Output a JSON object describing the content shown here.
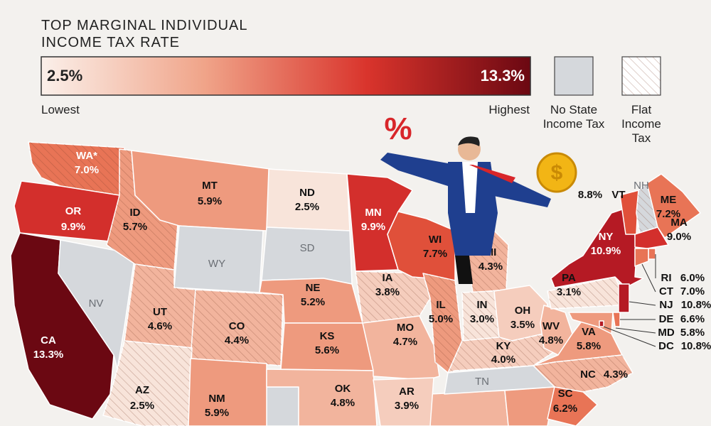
{
  "header": {
    "title_lines": [
      "TOP MARGINAL INDIVIDUAL",
      "INCOME TAX RATE"
    ]
  },
  "legend": {
    "min_label": "2.5%",
    "max_label": "13.3%",
    "low_text": "Lowest",
    "high_text": "Highest",
    "gradient": [
      "#fbf0ea",
      "#f0a489",
      "#d9342c",
      "#6b0812"
    ],
    "no_tax": {
      "lines": [
        "No State",
        "Income Tax"
      ],
      "color": "#d5d8dc"
    },
    "flat": {
      "lines": [
        "Flat",
        "Income",
        "Tax"
      ]
    }
  },
  "illustration": {
    "percent_sign": "%",
    "coin_symbol": "$"
  },
  "states": [
    {
      "abbr": "WA*",
      "rate": "7.0%",
      "color": "#e87456",
      "flat": true
    },
    {
      "abbr": "OR",
      "rate": "9.9%",
      "color": "#d32f2c"
    },
    {
      "abbr": "CA",
      "rate": "13.3%",
      "color": "#6b0812"
    },
    {
      "abbr": "NV",
      "color": "#d5d8dc"
    },
    {
      "abbr": "ID",
      "rate": "5.7%",
      "color": "#ee9a7e",
      "flat": true
    },
    {
      "abbr": "MT",
      "rate": "5.9%",
      "color": "#ee9a7e"
    },
    {
      "abbr": "WY",
      "color": "#d5d8dc"
    },
    {
      "abbr": "UT",
      "rate": "4.6%",
      "color": "#f2b49d",
      "flat": true
    },
    {
      "abbr": "CO",
      "rate": "4.4%",
      "color": "#f2b49d",
      "flat": true
    },
    {
      "abbr": "AZ",
      "rate": "2.5%",
      "color": "#f8e4da",
      "flat": true
    },
    {
      "abbr": "NM",
      "rate": "5.9%",
      "color": "#ee9a7e"
    },
    {
      "abbr": "ND",
      "rate": "2.5%",
      "color": "#f8e4da"
    },
    {
      "abbr": "SD",
      "color": "#d5d8dc"
    },
    {
      "abbr": "NE",
      "rate": "5.2%",
      "color": "#ee9a7e"
    },
    {
      "abbr": "KS",
      "rate": "5.6%",
      "color": "#ee9a7e"
    },
    {
      "abbr": "OK",
      "rate": "4.8%",
      "color": "#f2b49d"
    },
    {
      "abbr": "MN",
      "rate": "9.9%",
      "color": "#d32f2c"
    },
    {
      "abbr": "IA",
      "rate": "3.8%",
      "color": "#f5cdbd",
      "flat": true
    },
    {
      "abbr": "MO",
      "rate": "4.7%",
      "color": "#f2b49d"
    },
    {
      "abbr": "AR",
      "rate": "3.9%",
      "color": "#f5cdbd"
    },
    {
      "abbr": "WI",
      "rate": "7.7%",
      "color": "#e0503a"
    },
    {
      "abbr": "IL",
      "rate": "5.0%",
      "color": "#ee9a7e",
      "flat": true
    },
    {
      "abbr": "MI",
      "rate": "4.3%",
      "color": "#f2b49d",
      "flat": true
    },
    {
      "abbr": "IN",
      "rate": "3.0%",
      "color": "#f8e4da",
      "flat": true
    },
    {
      "abbr": "OH",
      "rate": "3.5%",
      "color": "#f5cdbd"
    },
    {
      "abbr": "KY",
      "rate": "4.0%",
      "color": "#f5cdbd",
      "flat": true
    },
    {
      "abbr": "TN",
      "color": "#d5d8dc"
    },
    {
      "abbr": "WV",
      "rate": "4.8%",
      "color": "#f2b49d"
    },
    {
      "abbr": "VA",
      "rate": "5.8%",
      "color": "#ee9a7e"
    },
    {
      "abbr": "NC",
      "rate": "4.3%",
      "color": "#f2b49d",
      "flat": true
    },
    {
      "abbr": "SC",
      "rate": "6.2%",
      "color": "#e87456"
    },
    {
      "abbr": "PA",
      "rate": "3.1%",
      "color": "#f8e4da",
      "flat": true
    },
    {
      "abbr": "NY",
      "rate": "10.9%",
      "color": "#b51a24"
    },
    {
      "abbr": "VT",
      "rate": "8.8%",
      "color": "#e0503a"
    },
    {
      "abbr": "NH",
      "color": "#d5d8dc",
      "flat": true
    },
    {
      "abbr": "ME",
      "rate": "7.2%",
      "color": "#e87456"
    },
    {
      "abbr": "MA",
      "rate": "9.0%",
      "color": "#d32f2c"
    },
    {
      "abbr": "RI",
      "rate": "6.0%",
      "color": "#e87456"
    },
    {
      "abbr": "CT",
      "rate": "7.0%",
      "color": "#e87456"
    },
    {
      "abbr": "NJ",
      "rate": "10.8%",
      "color": "#b51a24"
    },
    {
      "abbr": "DE",
      "rate": "6.6%",
      "color": "#e87456"
    },
    {
      "abbr": "MD",
      "rate": "5.8%",
      "color": "#ee9a7e"
    },
    {
      "abbr": "DC",
      "rate": "10.8%",
      "color": "#b51a24"
    }
  ]
}
